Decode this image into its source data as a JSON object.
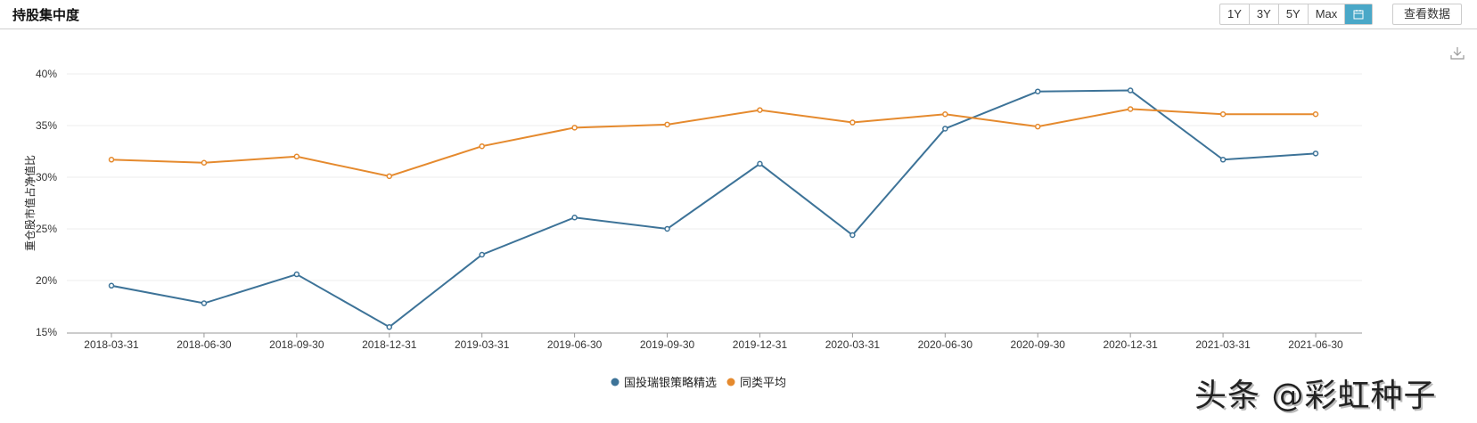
{
  "header": {
    "title": "持股集中度",
    "ranges": [
      "1Y",
      "3Y",
      "5Y",
      "Max"
    ],
    "calendar_icon": "calendar-icon",
    "view_data_label": "查看数据",
    "download_icon": "download-icon"
  },
  "colors": {
    "fund": "#3d7398",
    "peer": "#e58a2e",
    "accent": "#4aa8c8"
  },
  "watermark": "头条 @彩虹种子",
  "chart_data": {
    "type": "line",
    "title": "持股集中度",
    "xlabel": "",
    "ylabel": "重仓股市值占净值比",
    "ylim": [
      15,
      40
    ],
    "yticks": [
      "15%",
      "20%",
      "25%",
      "30%",
      "35%",
      "40%"
    ],
    "grid": true,
    "legend_position": "bottom",
    "categories": [
      "2018-03-31",
      "2018-06-30",
      "2018-09-30",
      "2018-12-31",
      "2019-03-31",
      "2019-06-30",
      "2019-09-30",
      "2019-12-31",
      "2020-03-31",
      "2020-06-30",
      "2020-09-30",
      "2020-12-31",
      "2021-03-31",
      "2021-06-30"
    ],
    "series": [
      {
        "name": "国投瑞银策略精选",
        "color": "#3d7398",
        "values": [
          19.5,
          17.8,
          20.6,
          15.5,
          22.5,
          26.1,
          25.0,
          31.3,
          24.4,
          34.7,
          38.3,
          38.4,
          31.7,
          32.3
        ]
      },
      {
        "name": "同类平均",
        "color": "#e58a2e",
        "values": [
          31.7,
          31.4,
          32.0,
          30.1,
          33.0,
          34.8,
          35.1,
          36.5,
          35.3,
          36.1,
          34.9,
          36.6,
          36.1,
          36.1
        ]
      }
    ]
  }
}
